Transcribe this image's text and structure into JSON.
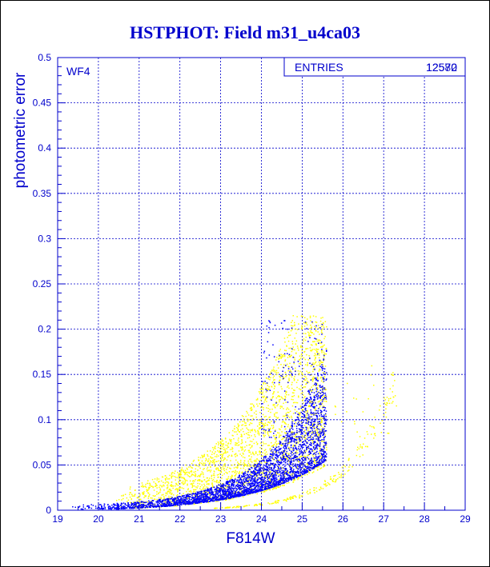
{
  "colors": {
    "axis": "#0000cc",
    "grid": "#0000cc",
    "text": "#0000cc",
    "series_blue": "#0000ff",
    "series_yellow": "#ffff00"
  },
  "chart_data": {
    "type": "scatter",
    "title": "HSTPHOT: Field m31_u4ca03",
    "xlabel": "F814W",
    "ylabel": "photometric error",
    "xlim": [
      19,
      29
    ],
    "ylim": [
      0,
      0.5
    ],
    "x_ticks": [
      "19",
      "20",
      "21",
      "22",
      "23",
      "24",
      "25",
      "26",
      "27",
      "28",
      "29"
    ],
    "y_ticks": [
      "0",
      "0.05",
      "0.1",
      "0.15",
      "0.2",
      "0.25",
      "0.3",
      "0.35",
      "0.4",
      "0.45",
      "0.5"
    ],
    "grid": true,
    "annotation": "WF4",
    "stats_box": {
      "label": "ENTRIES",
      "value_a": "12570",
      "value_b": "12582",
      "placement": "top-right"
    },
    "series": [
      {
        "color": "yellow",
        "description_points": [
          [
            20.6,
            0.012
          ],
          [
            21.0,
            0.025
          ],
          [
            21.5,
            0.04
          ],
          [
            22.0,
            0.055
          ],
          [
            22.5,
            0.075
          ],
          [
            23.0,
            0.095
          ],
          [
            23.5,
            0.115
          ],
          [
            24.0,
            0.14
          ],
          [
            24.5,
            0.17
          ],
          [
            25.0,
            0.2
          ],
          [
            23.5,
            0.008
          ],
          [
            24.5,
            0.012
          ],
          [
            25.5,
            0.025
          ],
          [
            26.0,
            0.05
          ],
          [
            26.5,
            0.1
          ],
          [
            27.0,
            0.15
          ],
          [
            27.3,
            0.18
          ]
        ]
      },
      {
        "color": "blue",
        "description_points": [
          [
            19.5,
            0.002
          ],
          [
            20.5,
            0.005
          ],
          [
            21.5,
            0.01
          ],
          [
            22.5,
            0.02
          ],
          [
            23.0,
            0.03
          ],
          [
            23.5,
            0.045
          ],
          [
            24.0,
            0.06
          ],
          [
            24.5,
            0.09
          ],
          [
            25.0,
            0.13
          ],
          [
            25.3,
            0.17
          ],
          [
            25.6,
            0.21
          ]
        ]
      }
    ]
  }
}
